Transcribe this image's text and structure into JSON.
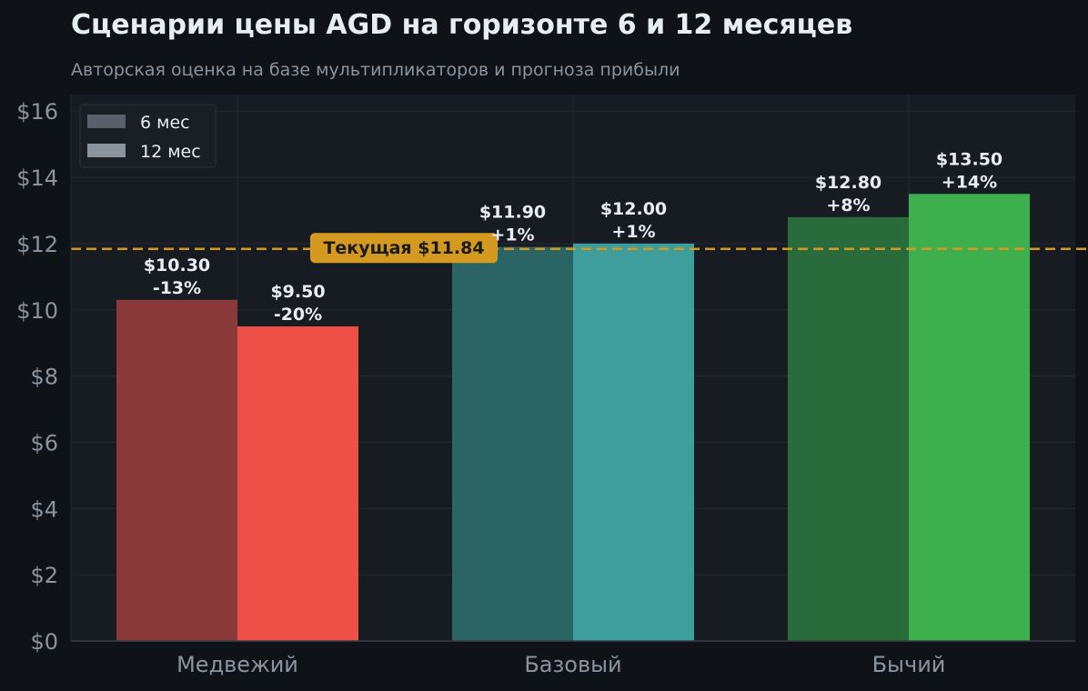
{
  "chart_data": {
    "type": "bar",
    "title": "Сценарии цены AGD на горизонте 6 и 12 месяцев",
    "subtitle": "Авторская оценка на базе мультипликаторов и прогноза прибыли",
    "categories": [
      "Медвежий",
      "Базовый",
      "Бычий"
    ],
    "series": [
      {
        "name": "6 мес",
        "values": [
          10.3,
          11.9,
          12.8
        ],
        "value_labels": [
          "$10.30",
          "$11.90",
          "$12.80"
        ],
        "change_labels": [
          "-13%",
          "+1%",
          "+8%"
        ],
        "colors": [
          "#8b3a3b",
          "#2b6464",
          "#2a6b3c"
        ]
      },
      {
        "name": "12 мес",
        "values": [
          9.5,
          12.0,
          13.5
        ],
        "value_labels": [
          "$9.50",
          "$12.00",
          "$13.50"
        ],
        "change_labels": [
          "-20%",
          "+1%",
          "+14%"
        ],
        "colors": [
          "#ec5047",
          "#3d9e9c",
          "#3daf4d"
        ]
      }
    ],
    "ylim": [
      0,
      16.5
    ],
    "yticks": [
      0,
      2,
      4,
      6,
      8,
      10,
      12,
      14,
      16
    ],
    "ytick_labels": [
      "$0",
      "$2",
      "$4",
      "$6",
      "$8",
      "$10",
      "$12",
      "$14",
      "$16"
    ],
    "reference_line": {
      "value": 11.84,
      "label": "Текущая $11.84",
      "color": "#d4991f"
    },
    "legend": {
      "placement": "top-left",
      "entries": [
        {
          "label": "6 мес",
          "color": "#5a5f69"
        },
        {
          "label": "12 мес",
          "color": "#8b939d"
        }
      ]
    },
    "grid": true,
    "colors": {
      "background": "#0f1317",
      "plot_background": "#171b22",
      "grid": "#262b33",
      "text": "#e6edf3",
      "muted_text": "#8b949e"
    }
  }
}
